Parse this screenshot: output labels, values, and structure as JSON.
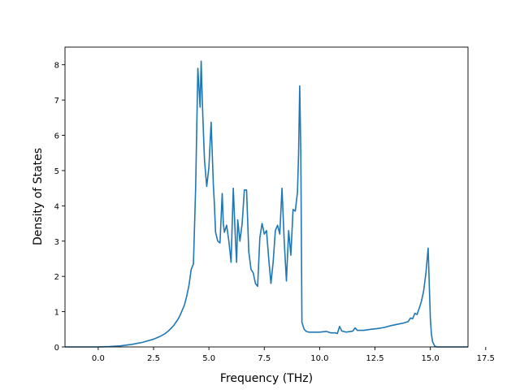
{
  "chart_data": {
    "type": "line",
    "title": "",
    "xlabel": "Frequency (THz)",
    "ylabel": "Density of States",
    "xlim": [
      -1.5,
      16.7
    ],
    "ylim": [
      0,
      8.5
    ],
    "xticks": [
      0.0,
      2.5,
      5.0,
      7.5,
      10.0,
      12.5,
      15.0,
      17.5
    ],
    "xtick_labels": [
      "0.0",
      "2.5",
      "5.0",
      "7.5",
      "10.0",
      "12.5",
      "15.0",
      "17.5"
    ],
    "yticks": [
      0,
      1,
      2,
      3,
      4,
      5,
      6,
      7,
      8
    ],
    "ytick_labels": [
      "0",
      "1",
      "2",
      "3",
      "4",
      "5",
      "6",
      "7",
      "8"
    ],
    "grid": false,
    "colors": {
      "line": "#1f77b4"
    },
    "series": [
      {
        "x": [
          -1.5,
          -1.0,
          -0.5,
          0.0,
          0.5,
          1.0,
          1.5,
          2.0,
          2.5,
          2.8,
          3.0,
          3.2,
          3.4,
          3.6,
          3.7,
          3.8,
          3.9,
          4.0,
          4.1,
          4.2,
          4.3,
          4.4,
          4.5,
          4.6,
          4.65,
          4.7,
          4.75,
          4.8,
          4.9,
          5.0,
          5.1,
          5.2,
          5.25,
          5.3,
          5.4,
          5.5,
          5.6,
          5.65,
          5.7,
          5.8,
          5.9,
          6.0,
          6.1,
          6.2,
          6.25,
          6.3,
          6.4,
          6.5,
          6.6,
          6.7,
          6.8,
          6.9,
          7.0,
          7.1,
          7.2,
          7.3,
          7.4,
          7.5,
          7.6,
          7.7,
          7.8,
          7.9,
          8.0,
          8.1,
          8.2,
          8.3,
          8.4,
          8.5,
          8.6,
          8.7,
          8.8,
          8.9,
          9.0,
          9.05,
          9.1,
          9.15,
          9.2,
          9.3,
          9.4,
          9.5,
          9.7,
          10.0,
          10.3,
          10.5,
          10.7,
          10.8,
          10.9,
          11.0,
          11.2,
          11.4,
          11.5,
          11.6,
          11.7,
          11.8,
          12.0,
          12.3,
          12.6,
          12.9,
          13.2,
          13.5,
          13.8,
          14.0,
          14.1,
          14.2,
          14.3,
          14.4,
          14.5,
          14.6,
          14.7,
          14.8,
          14.9,
          15.0,
          15.05,
          15.1,
          15.2,
          15.3,
          15.5,
          16.0,
          16.7
        ],
        "y": [
          0,
          0,
          0,
          0,
          0.01,
          0.03,
          0.07,
          0.13,
          0.22,
          0.3,
          0.37,
          0.47,
          0.6,
          0.78,
          0.9,
          1.05,
          1.2,
          1.45,
          1.75,
          2.2,
          2.35,
          4.5,
          7.9,
          6.8,
          8.1,
          7.0,
          6.1,
          5.3,
          4.55,
          5.1,
          6.37,
          4.6,
          4.0,
          3.25,
          3.0,
          2.95,
          4.35,
          3.5,
          3.25,
          3.45,
          3.0,
          2.4,
          4.5,
          3.0,
          2.4,
          3.6,
          3.0,
          3.5,
          4.45,
          4.45,
          2.7,
          2.2,
          2.1,
          1.8,
          1.72,
          3.1,
          3.5,
          3.2,
          3.3,
          2.5,
          1.8,
          2.4,
          3.3,
          3.45,
          3.2,
          4.5,
          3.0,
          1.87,
          3.3,
          2.6,
          3.9,
          3.85,
          4.4,
          5.5,
          7.4,
          5.5,
          0.7,
          0.5,
          0.44,
          0.42,
          0.42,
          0.42,
          0.44,
          0.4,
          0.4,
          0.38,
          0.58,
          0.45,
          0.42,
          0.44,
          0.45,
          0.54,
          0.47,
          0.47,
          0.47,
          0.5,
          0.52,
          0.55,
          0.6,
          0.64,
          0.68,
          0.72,
          0.82,
          0.8,
          0.95,
          0.92,
          1.1,
          1.3,
          1.6,
          2.1,
          2.8,
          0.8,
          0.35,
          0.15,
          0.02,
          0,
          0,
          0,
          0
        ]
      }
    ]
  }
}
